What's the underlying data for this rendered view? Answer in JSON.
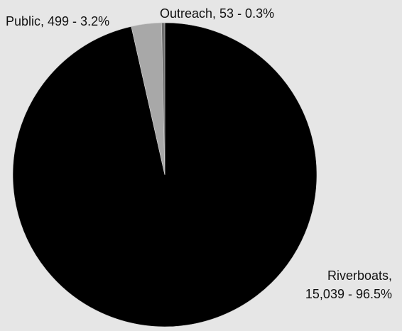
{
  "chart_data": {
    "type": "pie",
    "title": "",
    "slices": [
      {
        "label": "Riverboats",
        "value": 15039,
        "percent": 96.5,
        "value_text": "15,039 - 96.5%",
        "color": "#000000"
      },
      {
        "label": "Public",
        "value": 499,
        "percent": 3.2,
        "value_text": "499 - 3.2%",
        "color": "#a8a8a8"
      },
      {
        "label": "Outreach",
        "value": 53,
        "percent": 0.3,
        "value_text": "53 - 0.3%",
        "color": "#6f6f6f"
      }
    ],
    "legend": "none"
  },
  "labels": {
    "public": "Public, 499 - 3.2%",
    "outreach": "Outreach, 53 - 0.3%",
    "riverboats_line1": "Riverboats,",
    "riverboats_line2": "15,039 - 96.5%"
  }
}
